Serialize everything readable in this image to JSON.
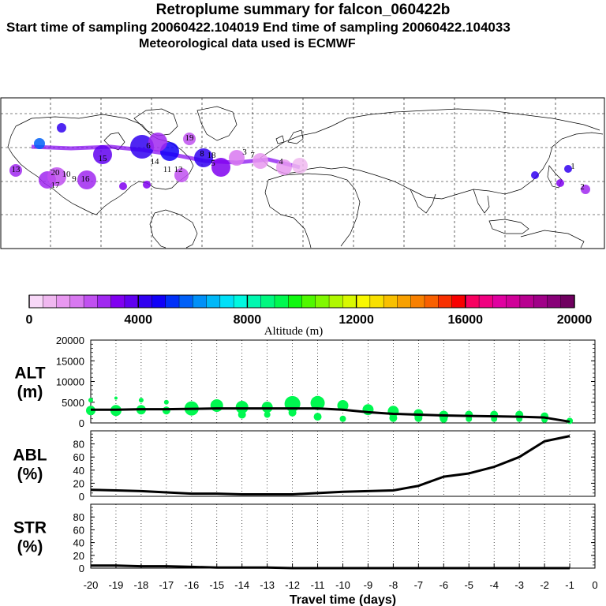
{
  "header": {
    "title": "Retroplume summary for falcon_060422b",
    "sampling": "Start time of sampling 20060422.104019     End time of sampling 20060422.104033",
    "met": "Meteorological data used is ECMWF"
  },
  "map": {
    "plume_labels": [
      "1",
      "2",
      "3",
      "4",
      "5",
      "6",
      "7",
      "8",
      "9",
      "10",
      "11",
      "12",
      "13",
      "14",
      "15",
      "16",
      "17",
      "18",
      "19",
      "20"
    ]
  },
  "colorbar": {
    "tick_labels": [
      "0",
      "4000",
      "8000",
      "12000",
      "16000",
      "20000"
    ],
    "title": "Altitude (m)",
    "colors": [
      "#f8d8f8",
      "#f0b8f0",
      "#e898f0",
      "#d878f0",
      "#c050f0",
      "#a028f0",
      "#8000f0",
      "#6000f0",
      "#3000f0",
      "#1000f8",
      "#0030f8",
      "#0060f8",
      "#0090f8",
      "#00b8f8",
      "#00e0f8",
      "#00f8e0",
      "#00f8b0",
      "#00f880",
      "#00f850",
      "#10f810",
      "#50f800",
      "#80f800",
      "#b0f800",
      "#d8f800",
      "#f8f800",
      "#f8e000",
      "#f8c000",
      "#f8a000",
      "#f88000",
      "#f86000",
      "#f83000",
      "#f80000",
      "#f80060",
      "#f00080",
      "#e000a0",
      "#d00098",
      "#b80090",
      "#a00088",
      "#880078",
      "#700060"
    ]
  },
  "chart_data": [
    {
      "type": "line",
      "name": "alt",
      "ylabel": "ALT\n(m)",
      "ylim": [
        0,
        20000
      ],
      "yticks": [
        "20000",
        "15000",
        "10000",
        "5000",
        "0"
      ],
      "x": [
        -20,
        -19,
        -18,
        -17,
        -16,
        -15,
        -14,
        -13,
        -12,
        -11,
        -10,
        -9,
        -8,
        -7,
        -6,
        -5,
        -4,
        -3,
        -2,
        -1
      ],
      "values": [
        3200,
        3200,
        3300,
        3300,
        3400,
        3500,
        3500,
        3500,
        3500,
        3500,
        3200,
        2600,
        2200,
        2000,
        1800,
        1700,
        1600,
        1500,
        1300,
        300
      ],
      "spread_circles": [
        [
          -20,
          3000,
          6
        ],
        [
          -20,
          5500,
          3
        ],
        [
          -19,
          3000,
          7
        ],
        [
          -19,
          6000,
          2
        ],
        [
          -18,
          3200,
          6
        ],
        [
          -18,
          5500,
          3
        ],
        [
          -17,
          3000,
          5
        ],
        [
          -17,
          5000,
          3
        ],
        [
          -16,
          3500,
          9
        ],
        [
          -15,
          4200,
          8
        ],
        [
          -14,
          3800,
          8
        ],
        [
          -14,
          2000,
          5
        ],
        [
          -13,
          3800,
          7
        ],
        [
          -13,
          2000,
          4
        ],
        [
          -12,
          4600,
          10
        ],
        [
          -12,
          2500,
          5
        ],
        [
          -11,
          4800,
          9
        ],
        [
          -11,
          1500,
          5
        ],
        [
          -10,
          4200,
          7
        ],
        [
          -10,
          1000,
          4
        ],
        [
          -9,
          3200,
          7
        ],
        [
          -8,
          2800,
          7
        ],
        [
          -8,
          1200,
          5
        ],
        [
          -7,
          2200,
          6
        ],
        [
          -7,
          1200,
          5
        ],
        [
          -6,
          1800,
          6
        ],
        [
          -6,
          1000,
          5
        ],
        [
          -5,
          2000,
          5
        ],
        [
          -5,
          1000,
          4
        ],
        [
          -4,
          2000,
          5
        ],
        [
          -4,
          1000,
          4
        ],
        [
          -3,
          2000,
          5
        ],
        [
          -3,
          1000,
          4
        ],
        [
          -2,
          1600,
          5
        ],
        [
          -2,
          800,
          4
        ],
        [
          -1,
          500,
          4
        ]
      ]
    },
    {
      "type": "line",
      "name": "abl",
      "ylabel": "ABL\n(%)",
      "ylim": [
        0,
        100
      ],
      "yticks": [
        "80",
        "60",
        "40",
        "20",
        "0"
      ],
      "x": [
        -20,
        -19,
        -18,
        -17,
        -16,
        -15,
        -14,
        -13,
        -12,
        -11,
        -10,
        -9,
        -8,
        -7,
        -6,
        -5,
        -4,
        -3,
        -2,
        -1
      ],
      "values": [
        10,
        9,
        8,
        6,
        4,
        4,
        3,
        3,
        3,
        5,
        7,
        8,
        9,
        16,
        30,
        35,
        45,
        60,
        84,
        92
      ]
    },
    {
      "type": "line",
      "name": "str",
      "ylabel": "STR\n(%)",
      "ylim": [
        0,
        100
      ],
      "yticks": [
        "80",
        "60",
        "40",
        "20",
        "0"
      ],
      "x": [
        -20,
        -19,
        -18,
        -17,
        -16,
        -15,
        -14,
        -13,
        -12,
        -11,
        -10,
        -9,
        -8,
        -7,
        -6,
        -5,
        -4,
        -3,
        -2,
        -1
      ],
      "values": [
        4,
        4,
        3,
        3,
        2,
        1,
        1,
        1,
        0,
        0,
        0,
        0,
        0,
        0,
        0,
        0,
        0,
        0,
        0,
        0
      ],
      "xlabel": "Travel time (days)",
      "xticks": [
        "-20",
        "-19",
        "-18",
        "-17",
        "-16",
        "-15",
        "-14",
        "-13",
        "-12",
        "-11",
        "-10",
        "-9",
        "-8",
        "-7",
        "-6",
        "-5",
        "-4",
        "-3",
        "-2",
        "-1",
        "0"
      ]
    }
  ]
}
